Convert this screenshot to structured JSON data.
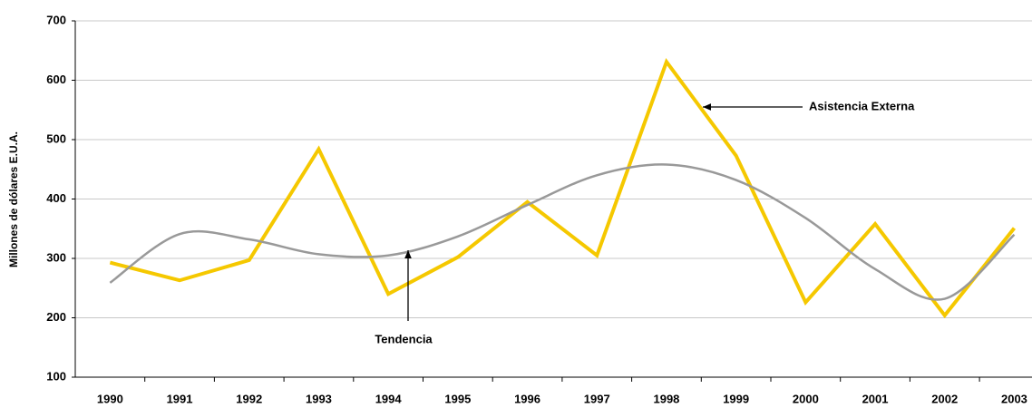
{
  "chart_data": {
    "type": "line",
    "y_label": "Millones de dólares E.U.A.",
    "categories": [
      "1990",
      "1991",
      "1992",
      "1993",
      "1994",
      "1995",
      "1996",
      "1997",
      "1998",
      "1999",
      "2000",
      "2001",
      "2002",
      "2003"
    ],
    "series": [
      {
        "name": "Asistencia Externa",
        "color": "#f5c800",
        "smooth": false,
        "values": [
          293,
          263,
          297,
          484,
          240,
          302,
          395,
          305,
          631,
          473,
          226,
          358,
          204,
          351
        ]
      },
      {
        "name": "Tendencia",
        "color": "#999999",
        "smooth": true,
        "values": [
          259,
          341,
          332,
          307,
          305,
          337,
          390,
          440,
          458,
          432,
          368,
          282,
          232,
          340
        ]
      }
    ],
    "ylim": [
      100,
      700
    ],
    "yticks": [
      100,
      200,
      300,
      400,
      500,
      600,
      700
    ],
    "grid": true
  }
}
